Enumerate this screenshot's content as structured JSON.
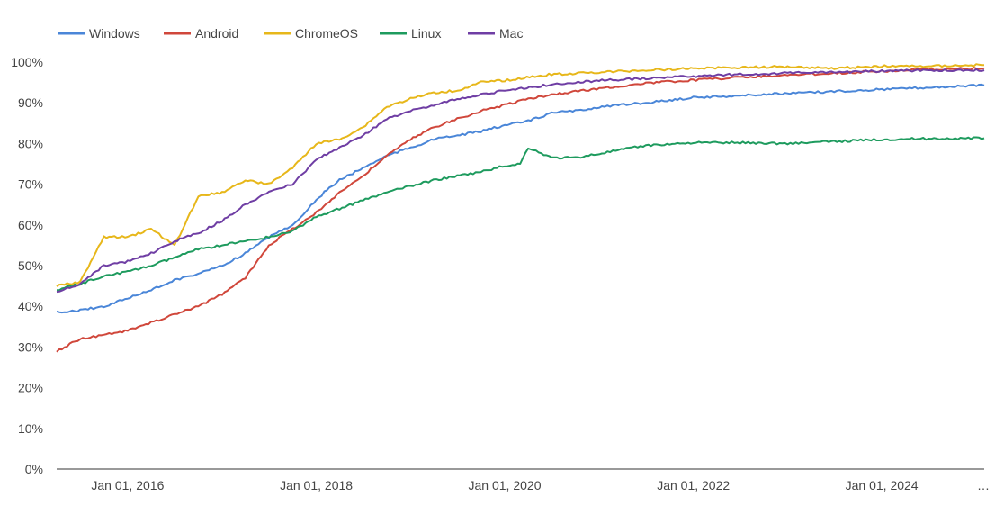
{
  "chart_data": {
    "type": "line",
    "title": "",
    "xlabel": "",
    "ylabel": "",
    "x_range": [
      "2015-04-01",
      "2025-02-01"
    ],
    "ylim": [
      0,
      100
    ],
    "y_ticks": [
      0,
      10,
      20,
      30,
      40,
      50,
      60,
      70,
      80,
      90,
      100
    ],
    "y_tick_labels": [
      "0%",
      "10%",
      "20%",
      "30%",
      "40%",
      "50%",
      "60%",
      "70%",
      "80%",
      "90%",
      "100%"
    ],
    "x_ticks": [
      "2016-01-01",
      "2018-01-01",
      "2020-01-01",
      "2022-01-01",
      "2024-01-01"
    ],
    "x_tick_labels": [
      "Jan 01, 2016",
      "Jan 01, 2018",
      "Jan 01, 2020",
      "Jan 01, 2022",
      "Jan 01, 2024"
    ],
    "x_overflow_label": "…",
    "grid": false,
    "legend_position": "top-left",
    "series": [
      {
        "name": "Windows",
        "color": "#4a86d8",
        "points": [
          [
            "2015-04-01",
            38.5
          ],
          [
            "2015-07-01",
            39
          ],
          [
            "2015-10-01",
            40
          ],
          [
            "2016-01-01",
            42
          ],
          [
            "2016-04-01",
            44
          ],
          [
            "2016-07-01",
            46.5
          ],
          [
            "2016-10-01",
            48
          ],
          [
            "2017-01-01",
            50
          ],
          [
            "2017-04-01",
            53
          ],
          [
            "2017-07-01",
            57
          ],
          [
            "2017-10-01",
            60
          ],
          [
            "2017-12-01",
            64
          ],
          [
            "2018-02-01",
            68
          ],
          [
            "2018-04-01",
            71
          ],
          [
            "2018-07-01",
            74
          ],
          [
            "2018-10-01",
            77
          ],
          [
            "2019-01-01",
            79
          ],
          [
            "2019-04-01",
            81
          ],
          [
            "2019-07-01",
            82
          ],
          [
            "2019-10-01",
            83
          ],
          [
            "2020-01-01",
            84.5
          ],
          [
            "2020-04-01",
            85.5
          ],
          [
            "2020-07-01",
            87.5
          ],
          [
            "2020-10-01",
            88
          ],
          [
            "2021-01-01",
            89
          ],
          [
            "2021-07-01",
            90
          ],
          [
            "2022-01-01",
            91.3
          ],
          [
            "2022-07-01",
            91.8
          ],
          [
            "2023-01-01",
            92.3
          ],
          [
            "2023-07-01",
            92.8
          ],
          [
            "2024-01-01",
            93.3
          ],
          [
            "2024-07-01",
            93.8
          ],
          [
            "2025-02-01",
            94.3
          ]
        ]
      },
      {
        "name": "Android",
        "color": "#d0473b",
        "points": [
          [
            "2015-04-01",
            29
          ],
          [
            "2015-07-01",
            32
          ],
          [
            "2015-10-01",
            33
          ],
          [
            "2016-01-01",
            34
          ],
          [
            "2016-04-01",
            36
          ],
          [
            "2016-07-01",
            38
          ],
          [
            "2016-10-01",
            40
          ],
          [
            "2017-01-01",
            43
          ],
          [
            "2017-04-01",
            47
          ],
          [
            "2017-07-01",
            55
          ],
          [
            "2017-10-01",
            59
          ],
          [
            "2018-01-01",
            63
          ],
          [
            "2018-04-01",
            68
          ],
          [
            "2018-07-01",
            72
          ],
          [
            "2018-10-01",
            77
          ],
          [
            "2019-01-01",
            81
          ],
          [
            "2019-04-01",
            84
          ],
          [
            "2019-07-01",
            86
          ],
          [
            "2019-10-01",
            88
          ],
          [
            "2020-01-01",
            89.5
          ],
          [
            "2020-04-01",
            91
          ],
          [
            "2020-07-01",
            92
          ],
          [
            "2020-10-01",
            92.8
          ],
          [
            "2021-01-01",
            93.5
          ],
          [
            "2021-07-01",
            94.8
          ],
          [
            "2022-01-01",
            95.6
          ],
          [
            "2022-07-01",
            96.3
          ],
          [
            "2023-01-01",
            96.8
          ],
          [
            "2023-07-01",
            97.3
          ],
          [
            "2024-01-01",
            97.8
          ],
          [
            "2024-07-01",
            98.2
          ],
          [
            "2025-02-01",
            98.5
          ]
        ]
      },
      {
        "name": "ChromeOS",
        "color": "#e7b71a",
        "points": [
          [
            "2015-04-01",
            45
          ],
          [
            "2015-07-01",
            46
          ],
          [
            "2015-10-01",
            57
          ],
          [
            "2016-01-01",
            57
          ],
          [
            "2016-04-01",
            59
          ],
          [
            "2016-07-01",
            55
          ],
          [
            "2016-10-01",
            67
          ],
          [
            "2017-01-01",
            68
          ],
          [
            "2017-04-01",
            71
          ],
          [
            "2017-07-01",
            70
          ],
          [
            "2017-10-01",
            74
          ],
          [
            "2018-01-01",
            80
          ],
          [
            "2018-04-01",
            81
          ],
          [
            "2018-07-01",
            84
          ],
          [
            "2018-10-01",
            89
          ],
          [
            "2019-01-01",
            91
          ],
          [
            "2019-04-01",
            92.5
          ],
          [
            "2019-07-01",
            93
          ],
          [
            "2019-10-01",
            95
          ],
          [
            "2020-01-01",
            95.5
          ],
          [
            "2020-07-01",
            97
          ],
          [
            "2021-01-01",
            97.5
          ],
          [
            "2021-07-01",
            98
          ],
          [
            "2022-01-01",
            98.5
          ],
          [
            "2022-07-01",
            98.7
          ],
          [
            "2023-01-01",
            98.9
          ],
          [
            "2023-07-01",
            98.5
          ],
          [
            "2024-01-01",
            99
          ],
          [
            "2024-07-01",
            99
          ],
          [
            "2025-02-01",
            99.3
          ]
        ]
      },
      {
        "name": "Linux",
        "color": "#1e9b5e",
        "points": [
          [
            "2015-04-01",
            44
          ],
          [
            "2015-07-01",
            45.5
          ],
          [
            "2015-10-01",
            47.5
          ],
          [
            "2016-01-01",
            48.5
          ],
          [
            "2016-04-01",
            50
          ],
          [
            "2016-07-01",
            52
          ],
          [
            "2016-10-01",
            54
          ],
          [
            "2017-01-01",
            55
          ],
          [
            "2017-04-01",
            56
          ],
          [
            "2017-07-01",
            57
          ],
          [
            "2017-10-01",
            58.5
          ],
          [
            "2018-01-01",
            62
          ],
          [
            "2018-04-01",
            64
          ],
          [
            "2018-07-01",
            66
          ],
          [
            "2018-10-01",
            68
          ],
          [
            "2019-01-01",
            69.5
          ],
          [
            "2019-04-01",
            71
          ],
          [
            "2019-07-01",
            72
          ],
          [
            "2019-10-01",
            73
          ],
          [
            "2020-01-01",
            74.5
          ],
          [
            "2020-03-01",
            75
          ],
          [
            "2020-04-01",
            79
          ],
          [
            "2020-07-01",
            76.5
          ],
          [
            "2020-10-01",
            76.5
          ],
          [
            "2021-01-01",
            77.5
          ],
          [
            "2021-07-01",
            79.5
          ],
          [
            "2022-01-01",
            80.2
          ],
          [
            "2022-07-01",
            80.2
          ],
          [
            "2023-01-01",
            80
          ],
          [
            "2023-07-01",
            80.5
          ],
          [
            "2024-01-01",
            81
          ],
          [
            "2024-07-01",
            81.2
          ],
          [
            "2025-02-01",
            81.3
          ]
        ]
      },
      {
        "name": "Mac",
        "color": "#6f3ea4",
        "points": [
          [
            "2015-04-01",
            43.5
          ],
          [
            "2015-07-01",
            45.5
          ],
          [
            "2015-10-01",
            50
          ],
          [
            "2016-01-01",
            51
          ],
          [
            "2016-04-01",
            53
          ],
          [
            "2016-07-01",
            56
          ],
          [
            "2016-10-01",
            58
          ],
          [
            "2017-01-01",
            61
          ],
          [
            "2017-04-01",
            65
          ],
          [
            "2017-07-01",
            68
          ],
          [
            "2017-10-01",
            70
          ],
          [
            "2018-01-01",
            76
          ],
          [
            "2018-04-01",
            79
          ],
          [
            "2018-07-01",
            82
          ],
          [
            "2018-10-01",
            86
          ],
          [
            "2019-01-01",
            88
          ],
          [
            "2019-04-01",
            89.5
          ],
          [
            "2019-07-01",
            91
          ],
          [
            "2019-10-01",
            92
          ],
          [
            "2020-01-01",
            93
          ],
          [
            "2020-07-01",
            94.5
          ],
          [
            "2021-01-01",
            95.5
          ],
          [
            "2021-07-01",
            96
          ],
          [
            "2022-01-01",
            96.5
          ],
          [
            "2022-07-01",
            97
          ],
          [
            "2023-01-01",
            97.3
          ],
          [
            "2023-07-01",
            97.5
          ],
          [
            "2024-01-01",
            97.8
          ],
          [
            "2024-07-01",
            98
          ],
          [
            "2025-02-01",
            98
          ]
        ]
      }
    ]
  }
}
